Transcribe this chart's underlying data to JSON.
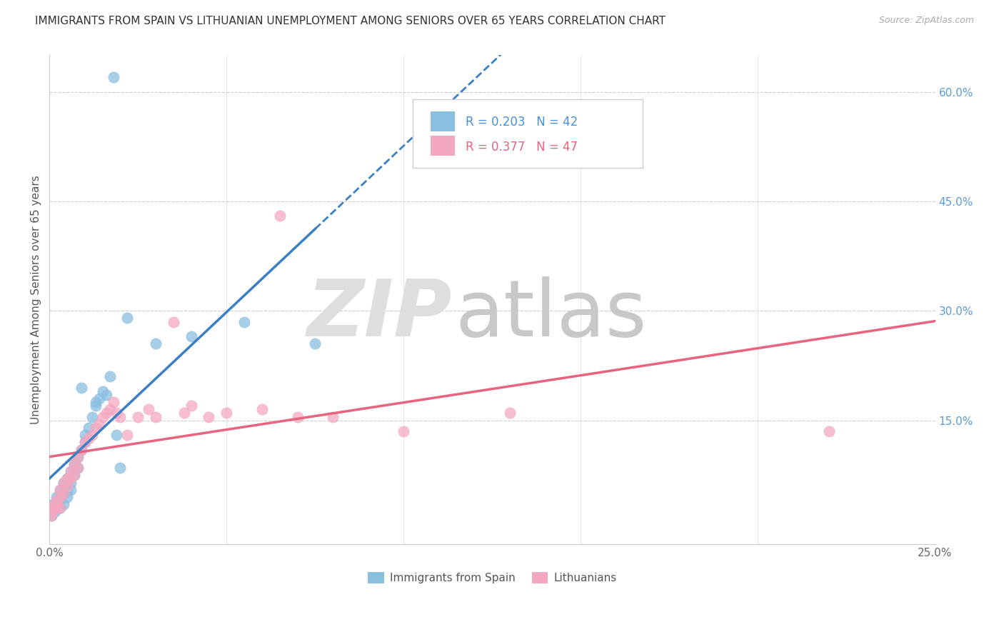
{
  "title": "IMMIGRANTS FROM SPAIN VS LITHUANIAN UNEMPLOYMENT AMONG SENIORS OVER 65 YEARS CORRELATION CHART",
  "source": "Source: ZipAtlas.com",
  "ylabel": "Unemployment Among Seniors over 65 years",
  "xlim": [
    0.0,
    0.25
  ],
  "ylim": [
    -0.02,
    0.65
  ],
  "ytick_right_labels": [
    "60.0%",
    "45.0%",
    "30.0%",
    "15.0%"
  ],
  "ytick_right_values": [
    0.6,
    0.45,
    0.3,
    0.15
  ],
  "legend1_label": "Immigrants from Spain",
  "legend2_label": "Lithuanians",
  "r1": 0.203,
  "n1": 42,
  "r2": 0.377,
  "n2": 47,
  "color_blue": "#89bfdf",
  "color_pink": "#f4a8bf",
  "color_blue_line": "#3b7fc4",
  "color_pink_line": "#e8637e",
  "spain_x": [
    0.0005,
    0.001,
    0.0015,
    0.002,
    0.002,
    0.0025,
    0.003,
    0.003,
    0.003,
    0.004,
    0.004,
    0.004,
    0.005,
    0.005,
    0.005,
    0.006,
    0.006,
    0.006,
    0.007,
    0.007,
    0.008,
    0.008,
    0.009,
    0.01,
    0.01,
    0.011,
    0.012,
    0.013,
    0.014,
    0.015,
    0.016,
    0.017,
    0.019,
    0.02,
    0.022,
    0.03,
    0.04,
    0.055,
    0.075,
    0.009,
    0.013,
    0.018
  ],
  "spain_y": [
    0.02,
    0.035,
    0.025,
    0.045,
    0.03,
    0.04,
    0.055,
    0.04,
    0.03,
    0.065,
    0.05,
    0.035,
    0.07,
    0.055,
    0.045,
    0.08,
    0.065,
    0.055,
    0.09,
    0.075,
    0.1,
    0.085,
    0.11,
    0.13,
    0.12,
    0.14,
    0.155,
    0.17,
    0.18,
    0.19,
    0.185,
    0.21,
    0.13,
    0.085,
    0.29,
    0.255,
    0.265,
    0.285,
    0.255,
    0.195,
    0.175,
    0.62
  ],
  "lith_x": [
    0.0005,
    0.001,
    0.001,
    0.0015,
    0.002,
    0.002,
    0.003,
    0.003,
    0.003,
    0.004,
    0.004,
    0.005,
    0.005,
    0.006,
    0.006,
    0.007,
    0.007,
    0.008,
    0.008,
    0.009,
    0.01,
    0.011,
    0.012,
    0.013,
    0.014,
    0.015,
    0.016,
    0.017,
    0.018,
    0.019,
    0.02,
    0.022,
    0.025,
    0.028,
    0.03,
    0.035,
    0.038,
    0.04,
    0.045,
    0.05,
    0.06,
    0.065,
    0.07,
    0.08,
    0.1,
    0.13,
    0.22
  ],
  "lith_y": [
    0.02,
    0.03,
    0.025,
    0.035,
    0.04,
    0.03,
    0.055,
    0.045,
    0.03,
    0.065,
    0.05,
    0.07,
    0.06,
    0.08,
    0.07,
    0.09,
    0.075,
    0.1,
    0.085,
    0.11,
    0.12,
    0.125,
    0.13,
    0.14,
    0.145,
    0.155,
    0.16,
    0.165,
    0.175,
    0.16,
    0.155,
    0.13,
    0.155,
    0.165,
    0.155,
    0.285,
    0.16,
    0.17,
    0.155,
    0.16,
    0.165,
    0.43,
    0.155,
    0.155,
    0.135,
    0.16,
    0.135
  ]
}
